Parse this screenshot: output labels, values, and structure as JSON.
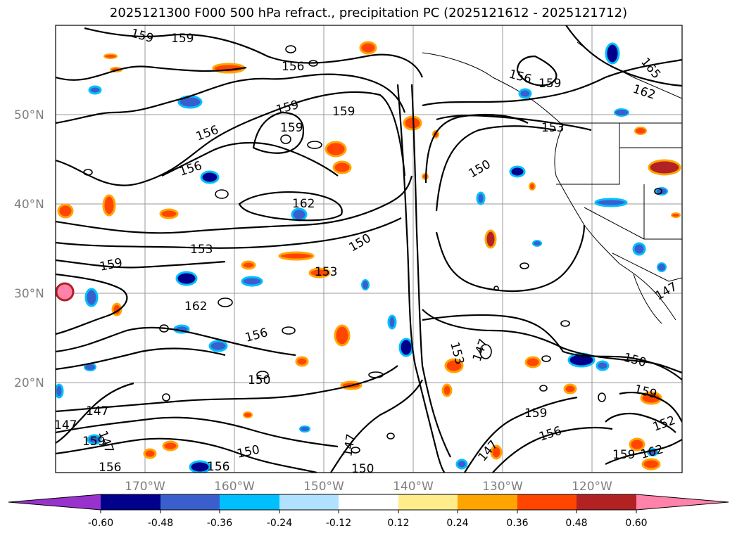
{
  "title": "2025121300 F000 500 hPa refract., precipitation PC (2025121612 - 2025121712)",
  "lat_labels": [
    "50°N",
    "40°N",
    "30°N",
    "20°N"
  ],
  "lon_labels": [
    "170°W",
    "160°W",
    "150°W",
    "140°W",
    "130°W",
    "120°W"
  ],
  "contour_labels": [
    {
      "text": "159",
      "id": "c1"
    },
    {
      "text": "159",
      "id": "c2"
    },
    {
      "text": "156",
      "id": "c3"
    },
    {
      "text": "156",
      "id": "c4"
    },
    {
      "text": "159",
      "id": "c5"
    },
    {
      "text": "159",
      "id": "c6"
    },
    {
      "text": "159",
      "id": "c7"
    },
    {
      "text": "156",
      "id": "c8"
    },
    {
      "text": "156",
      "id": "c9"
    },
    {
      "text": "162",
      "id": "c10"
    },
    {
      "text": "153",
      "id": "c11"
    },
    {
      "text": "150",
      "id": "c12"
    },
    {
      "text": "153",
      "id": "c13"
    },
    {
      "text": "159",
      "id": "c14"
    },
    {
      "text": "162",
      "id": "c15"
    },
    {
      "text": "156",
      "id": "c16"
    },
    {
      "text": "150",
      "id": "c17"
    },
    {
      "text": "156",
      "id": "c18"
    },
    {
      "text": "159",
      "id": "c19"
    },
    {
      "text": "165",
      "id": "c20"
    },
    {
      "text": "162",
      "id": "c21"
    },
    {
      "text": "153",
      "id": "c22"
    },
    {
      "text": "150",
      "id": "c23"
    },
    {
      "text": "147",
      "id": "c24"
    },
    {
      "text": "153",
      "id": "c25"
    },
    {
      "text": "150",
      "id": "c26"
    },
    {
      "text": "159",
      "id": "c27"
    },
    {
      "text": "159",
      "id": "c28"
    },
    {
      "text": "156",
      "id": "c29"
    },
    {
      "text": "147",
      "id": "c30"
    },
    {
      "text": "152",
      "id": "c31"
    },
    {
      "text": "159",
      "id": "c32"
    },
    {
      "text": "162",
      "id": "c33"
    },
    {
      "text": "147",
      "id": "c34"
    },
    {
      "text": "150",
      "id": "c35"
    },
    {
      "text": "147",
      "id": "c36"
    },
    {
      "text": "156",
      "id": "c37"
    },
    {
      "text": "147",
      "id": "c38"
    },
    {
      "text": "159",
      "id": "c39"
    },
    {
      "text": "156",
      "id": "c40"
    },
    {
      "text": "150",
      "id": "c41"
    },
    {
      "text": "147",
      "id": "c42"
    },
    {
      "text": "147",
      "id": "c43"
    }
  ],
  "colorbar": {
    "ticks": [
      "-0.60",
      "-0.48",
      "-0.36",
      "-0.24",
      "-0.12",
      "0.12",
      "0.24",
      "0.36",
      "0.48",
      "0.60"
    ],
    "colors": [
      "#9932cc",
      "#00008b",
      "#3a5fcd",
      "#00bfff",
      "#b0e2ff",
      "#ffffff",
      "#ffec8b",
      "#ffa500",
      "#ff4500",
      "#b22222",
      "#ff82ab"
    ]
  },
  "precip_colors": {
    "deep_blue": "#00008b",
    "blue": "#3a5fcd",
    "sky": "#00bfff",
    "light_sky": "#b0e2ff",
    "yellow": "#ffec8b",
    "orange": "#ffa500",
    "red_orange": "#ff4500",
    "firebrick": "#b22222",
    "pink": "#ff82ab"
  }
}
